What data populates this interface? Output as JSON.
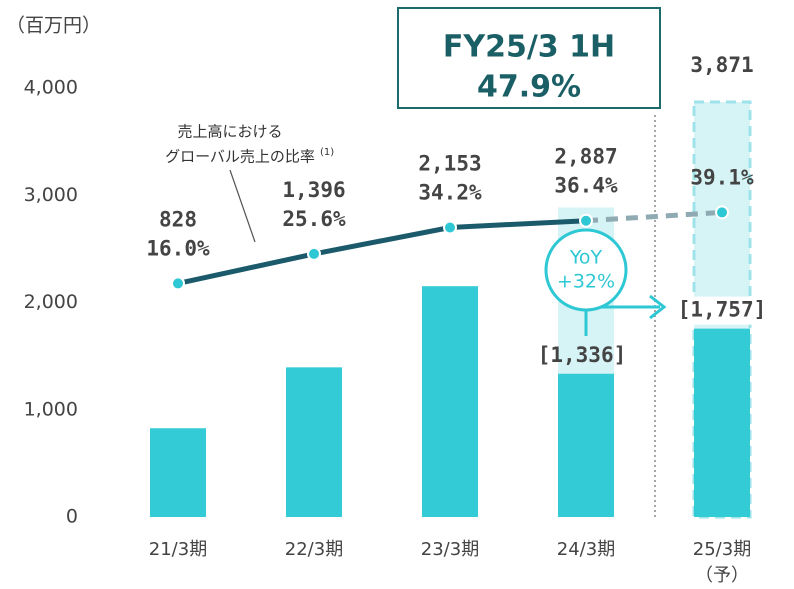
{
  "chart_data": {
    "type": "bar",
    "unit_label": "（百万円）",
    "categories": [
      "21/3期",
      "22/3期",
      "23/3期",
      "24/3期",
      [
        "25/3期",
        "（予）"
      ]
    ],
    "ylim": [
      0,
      4300
    ],
    "yticks": [
      0,
      {
        "value": 1000,
        "label": "1,000"
      },
      {
        "value": 2000,
        "label": "2,000"
      },
      {
        "value": 3000,
        "label": "3,000"
      },
      {
        "value": 4000,
        "label": "4,000"
      }
    ],
    "y2lim": [
      -60,
      90
    ],
    "bars": {
      "color": "#33cbd6",
      "light_color": "#d6f3f6",
      "dash_color": "#9fe3ea",
      "styles": [
        "solid",
        "solid",
        "solid",
        "split",
        "forecast"
      ],
      "values": [
        828,
        1396,
        2153,
        2887,
        3871
      ],
      "value_labels": [
        "828",
        "1,396",
        "2,153",
        "2,887",
        "3,871"
      ],
      "h1_values": [
        null,
        null,
        null,
        1336,
        1757
      ],
      "h1_value_labels": [
        null,
        null,
        null,
        "[1,336]",
        "[1,757]"
      ]
    },
    "line": {
      "type": "line",
      "axis": "y2",
      "color": "#1b5a6b",
      "forecast_color": "#8faab2",
      "marker_color": "#2ec8d4",
      "values": [
        16.0,
        25.6,
        34.2,
        36.4,
        39.1
      ],
      "value_labels": [
        "16.0%",
        "25.6%",
        "34.2%",
        "36.4%",
        "39.1%"
      ]
    },
    "line_annotation": [
      "売上高における",
      "グローバル売上の比率"
    ],
    "line_annotation_note": "(1)",
    "highlight_box": [
      "FY25/3 1H",
      "47.9%"
    ],
    "yoy_bubble": [
      "YoY",
      "+32%"
    ]
  }
}
